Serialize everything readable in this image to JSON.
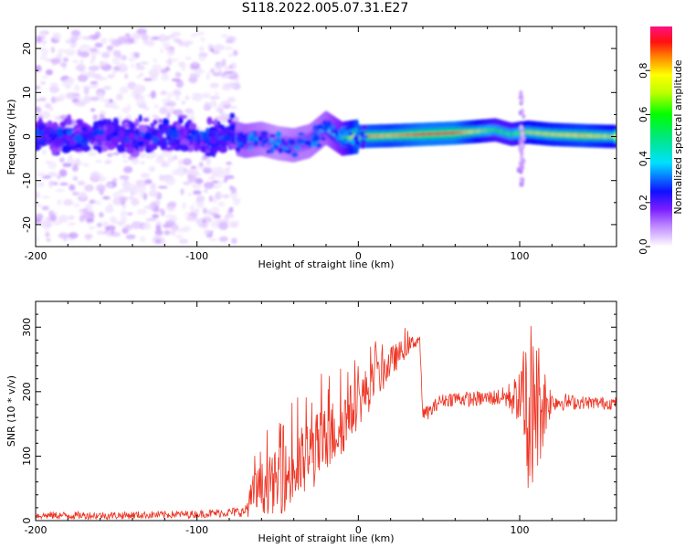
{
  "title": "S118.2022.005.07.31.E27",
  "colors": {
    "line": "#ee3322",
    "spectrogram_ridge": "#33ccff"
  },
  "chart_data": [
    {
      "type": "heatmap",
      "name": "spectrogram",
      "xlabel": "Height of straight line (km)",
      "ylabel": "Frequency (Hz)",
      "xlim": [
        -200,
        160
      ],
      "ylim": [
        -25,
        25
      ],
      "xticks": [
        -200,
        -100,
        0,
        100
      ],
      "xtick_labels": [
        "-200",
        "-100",
        "0",
        "100"
      ],
      "yticks": [
        20,
        10,
        0,
        -10,
        -20
      ],
      "ytick_labels": [
        "20",
        "10",
        "0",
        "-10",
        "-20"
      ],
      "colorbar": {
        "label": "Normalized spectral amplitude",
        "range": [
          0.0,
          1.0
        ],
        "ticks": [
          0.0,
          0.2,
          0.4,
          0.6,
          0.8
        ],
        "tick_labels": [
          "0.0",
          "0.2",
          "0.4",
          "0.6",
          "0.8"
        ]
      },
      "ridge": {
        "description": "dominant frequency track",
        "x": [
          -200,
          -150,
          -100,
          -80,
          -70,
          -60,
          -50,
          -40,
          -30,
          -20,
          -10,
          0,
          20,
          40,
          60,
          75,
          85,
          95,
          105,
          120,
          140,
          160
        ],
        "y": [
          0,
          0.5,
          0,
          0,
          -1,
          -0.5,
          -1.5,
          -2,
          -1,
          2,
          -0.5,
          0,
          0.2,
          0.5,
          0.8,
          1.2,
          1.5,
          0.5,
          1,
          0.5,
          0.2,
          0
        ],
        "amplitude": [
          0.2,
          0.2,
          0.2,
          0.3,
          0.35,
          0.3,
          0.25,
          0.3,
          0.3,
          0.35,
          0.5,
          0.85,
          0.8,
          0.9,
          0.9,
          0.7,
          0.6,
          0.6,
          0.7,
          0.75,
          0.8,
          0.7
        ]
      },
      "scatter_region": {
        "description": "diffuse low-amplitude energy spread across frequencies",
        "x_range": [
          -200,
          -75
        ],
        "freq_spread": 24,
        "amplitude_range": [
          0.02,
          0.3
        ]
      }
    },
    {
      "type": "line",
      "name": "snr",
      "xlabel": "Height of straight line (km)",
      "ylabel": "SNR (10 * v/v)",
      "xlim": [
        -200,
        160
      ],
      "ylim": [
        0,
        340
      ],
      "xticks": [
        -200,
        -100,
        0,
        100
      ],
      "xtick_labels": [
        "-200",
        "-100",
        "0",
        "100"
      ],
      "yticks": [
        0,
        100,
        200,
        300
      ],
      "ytick_labels": [
        "0",
        "100",
        "200",
        "300"
      ],
      "series": [
        {
          "name": "SNR",
          "envelope_x": [
            -200,
            -150,
            -100,
            -70,
            -65,
            -60,
            -50,
            -40,
            -30,
            -20,
            -10,
            0,
            10,
            20,
            30,
            38,
            40,
            45,
            50,
            60,
            70,
            80,
            90,
            100,
            105,
            110,
            120,
            140,
            160
          ],
          "envelope_mean": [
            8,
            8,
            10,
            14,
            40,
            50,
            60,
            75,
            100,
            125,
            150,
            185,
            215,
            245,
            270,
            282,
            165,
            170,
            185,
            190,
            188,
            190,
            192,
            190,
            185,
            180,
            185,
            183,
            182
          ],
          "envelope_noise": [
            6,
            6,
            6,
            8,
            35,
            40,
            50,
            60,
            60,
            55,
            50,
            40,
            35,
            25,
            15,
            8,
            10,
            12,
            10,
            12,
            12,
            12,
            15,
            40,
            140,
            120,
            15,
            10,
            10
          ]
        }
      ]
    }
  ]
}
